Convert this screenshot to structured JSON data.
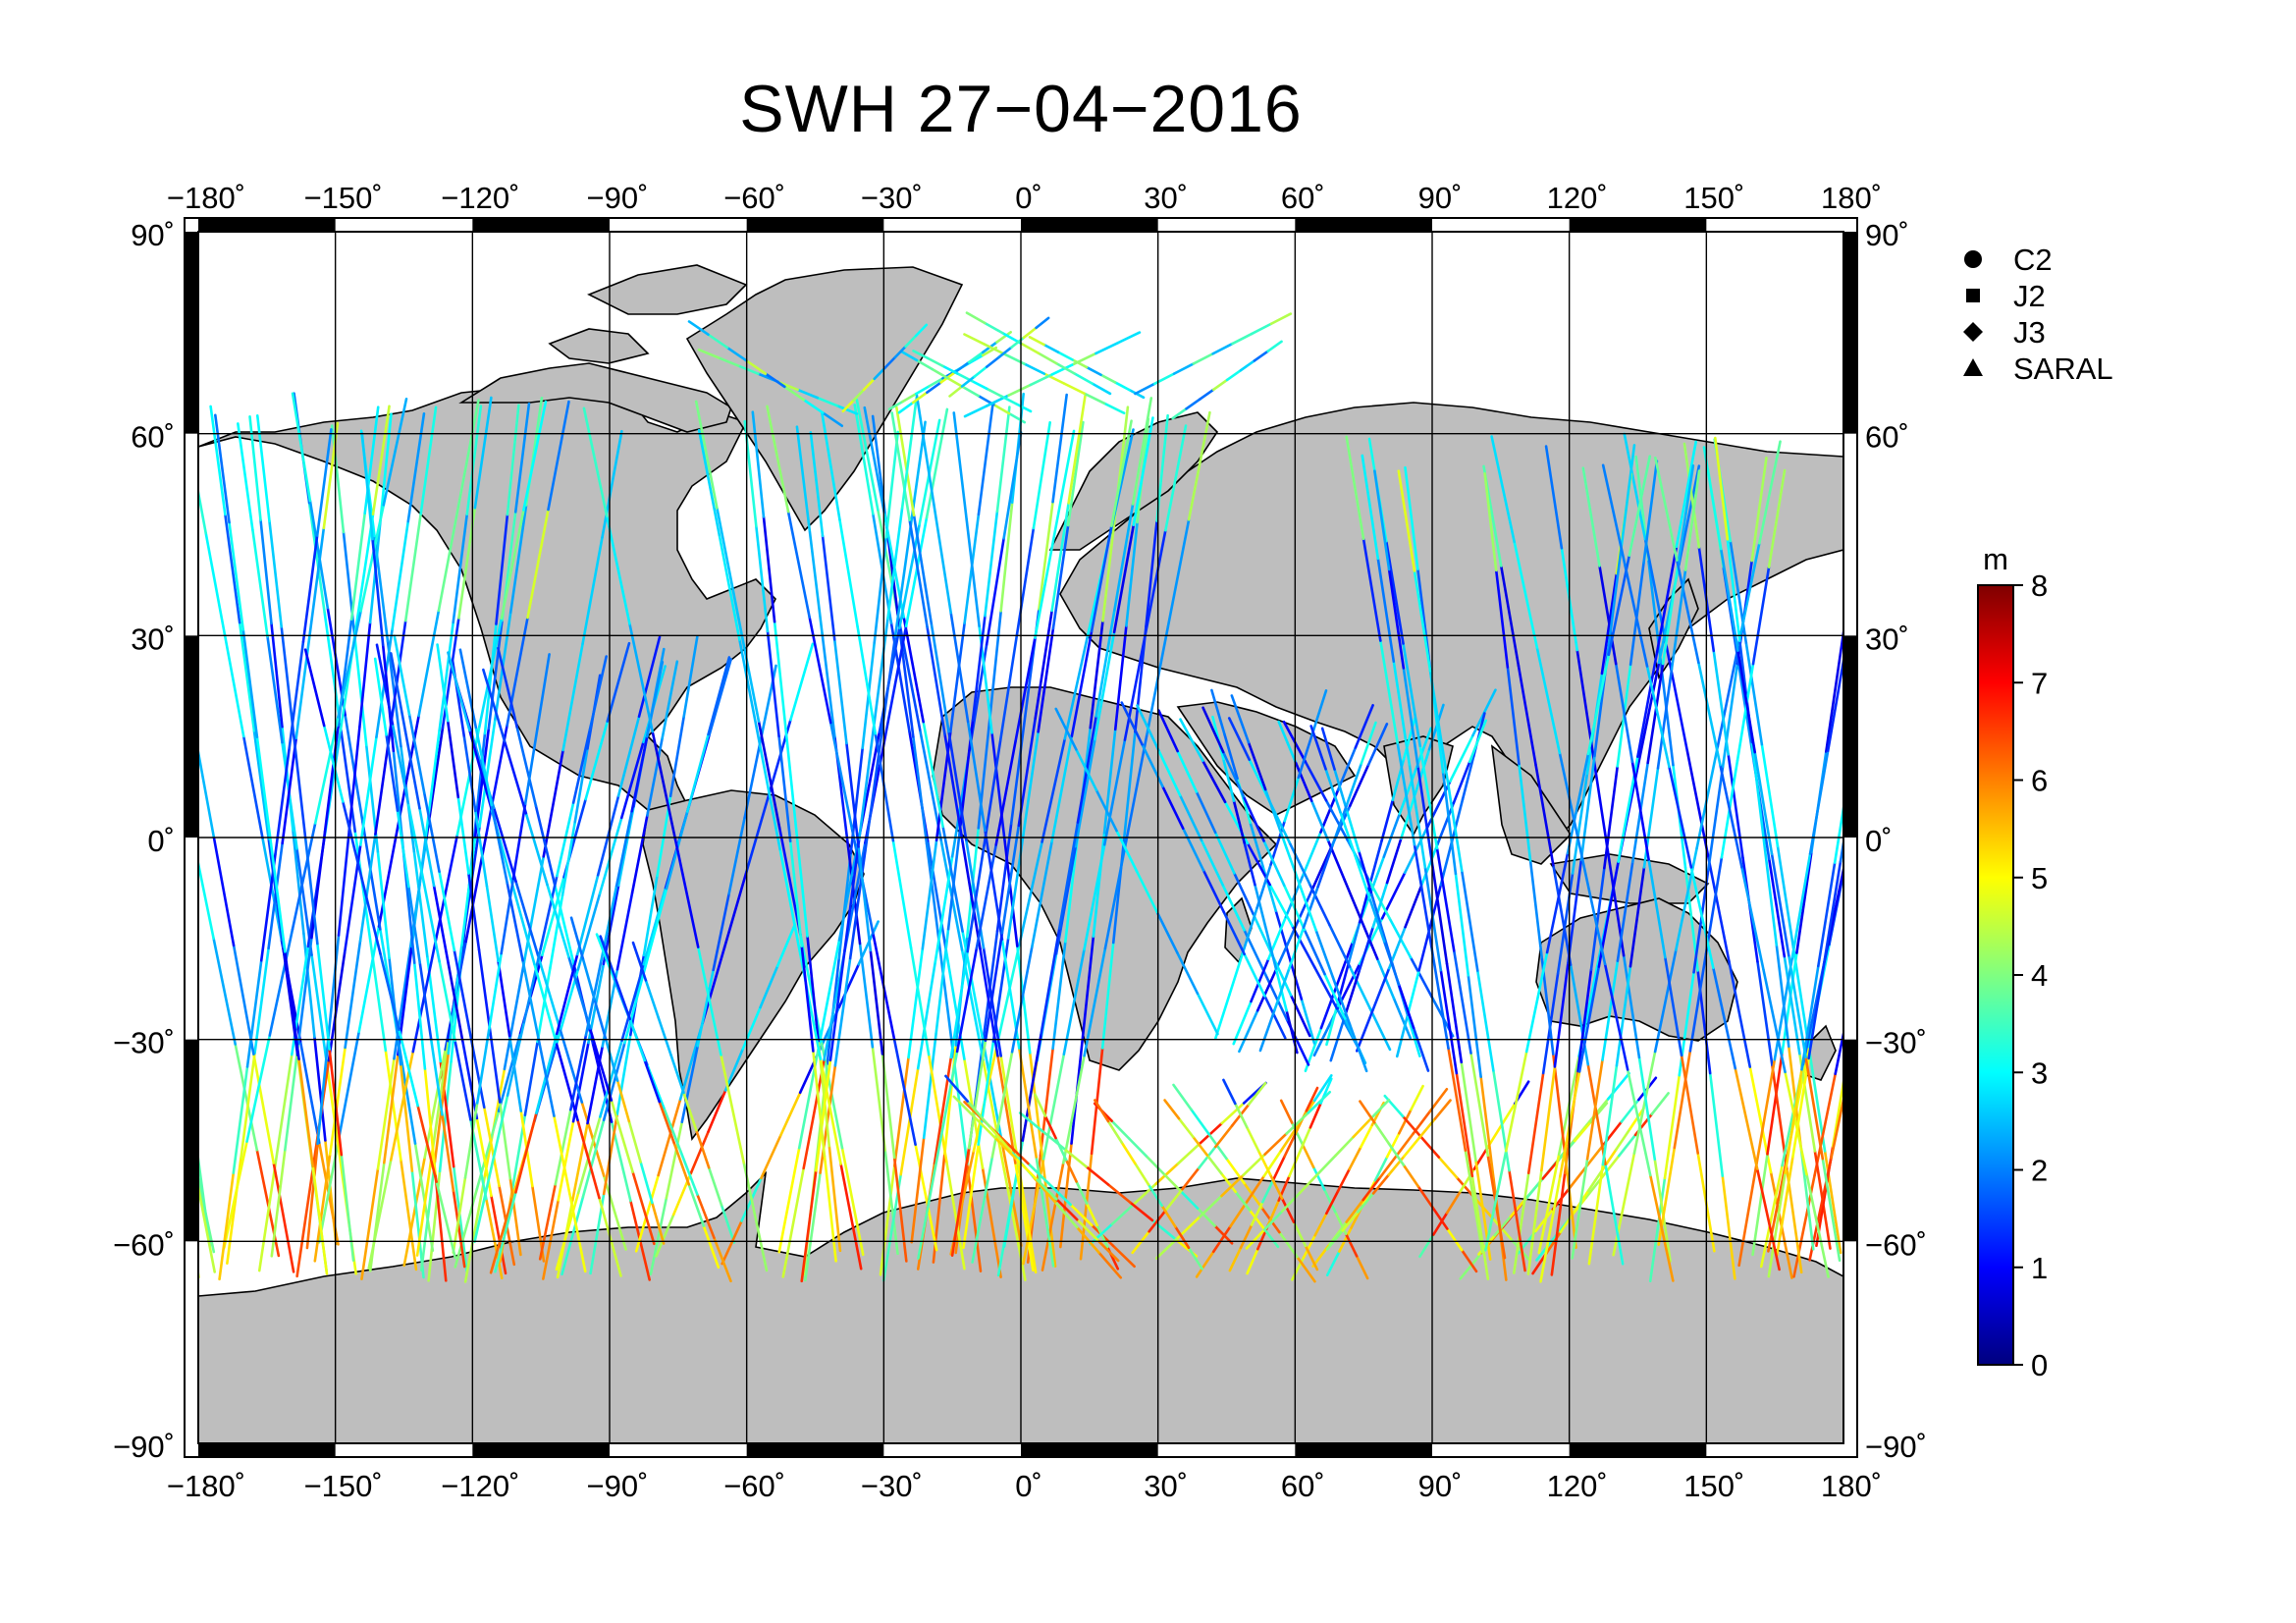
{
  "title": "SWH 27−04−2016",
  "map": {
    "projection": "plate-carree",
    "lon_range": [
      -180,
      180
    ],
    "lat_range": [
      -90,
      90
    ],
    "lon_ticks": [
      {
        "value": -180,
        "label": "−180˚"
      },
      {
        "value": -150,
        "label": "−150˚"
      },
      {
        "value": -120,
        "label": "−120˚"
      },
      {
        "value": -90,
        "label": "−90˚"
      },
      {
        "value": -60,
        "label": "−60˚"
      },
      {
        "value": -30,
        "label": "−30˚"
      },
      {
        "value": 0,
        "label": "0˚"
      },
      {
        "value": 30,
        "label": "30˚"
      },
      {
        "value": 60,
        "label": "60˚"
      },
      {
        "value": 90,
        "label": "90˚"
      },
      {
        "value": 120,
        "label": "120˚"
      },
      {
        "value": 150,
        "label": "150˚"
      },
      {
        "value": 180,
        "label": "180˚"
      }
    ],
    "lat_ticks": [
      {
        "value": 90,
        "label": "90˚"
      },
      {
        "value": 60,
        "label": "60˚"
      },
      {
        "value": 30,
        "label": "30˚"
      },
      {
        "value": 0,
        "label": "0˚"
      },
      {
        "value": -30,
        "label": "−30˚"
      },
      {
        "value": -60,
        "label": "−60˚"
      },
      {
        "value": -90,
        "label": "−90˚"
      }
    ],
    "grid": true,
    "land_color": "#bebebe",
    "ocean_color": "#ffffff",
    "track_regions": [
      {
        "lon": [
          -180,
          -120
        ],
        "lat": [
          -66,
          66
        ],
        "density": 34
      },
      {
        "lon": [
          -125,
          -80
        ],
        "lat": [
          -66,
          30
        ],
        "density": 26
      },
      {
        "lon": [
          -80,
          -60
        ],
        "lat": [
          -66,
          -10
        ],
        "density": 6
      },
      {
        "lon": [
          -60,
          15
        ],
        "lat": [
          -66,
          66
        ],
        "density": 40
      },
      {
        "lon": [
          -45,
          60
        ],
        "lat": [
          60,
          78
        ],
        "density": 14
      },
      {
        "lon": [
          15,
          120
        ],
        "lat": [
          -66,
          -35
        ],
        "density": 30
      },
      {
        "lon": [
          40,
          100
        ],
        "lat": [
          -35,
          22
        ],
        "density": 24
      },
      {
        "lon": [
          100,
          180
        ],
        "lat": [
          -66,
          60
        ],
        "density": 40
      }
    ]
  },
  "legend": {
    "items": [
      {
        "marker": "circle",
        "label": "C2"
      },
      {
        "marker": "square",
        "label": "J2"
      },
      {
        "marker": "diamond",
        "label": "J3"
      },
      {
        "marker": "triangle",
        "label": "SARAL"
      }
    ]
  },
  "colorbar": {
    "unit": "m",
    "min": 0,
    "max": 8,
    "ticks": [
      "0",
      "1",
      "2",
      "3",
      "4",
      "5",
      "6",
      "7",
      "8"
    ],
    "colormap": [
      "#00007f",
      "#0000ff",
      "#0080ff",
      "#00ffff",
      "#80ff80",
      "#ffff00",
      "#ff8000",
      "#ff0000",
      "#7f0000"
    ]
  }
}
